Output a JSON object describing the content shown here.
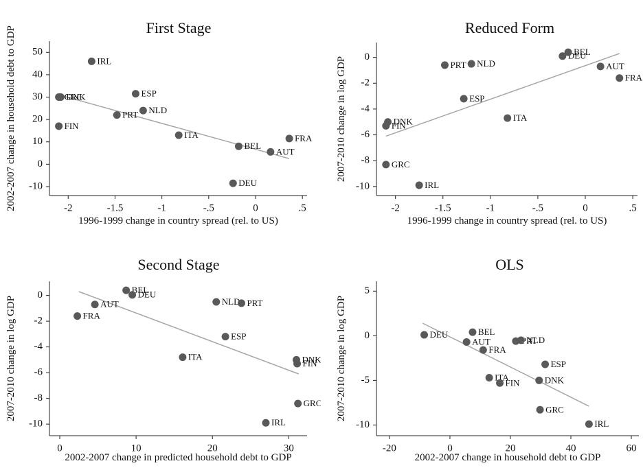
{
  "chart_data": [
    {
      "type": "scatter",
      "title": "First Stage",
      "x_label": "1996-1999 change in country spread (rel. to US)",
      "y_label": "2002-2007 change in household debt to GDP",
      "labels": [
        "IRL",
        "ESP",
        "GRC",
        "DNK",
        "PRT",
        "NLD",
        "FIN",
        "ITA",
        "BEL",
        "AUT",
        "FRA",
        "DEU"
      ],
      "x": [
        -1.75,
        -1.28,
        -2.1,
        -2.08,
        -1.48,
        -1.2,
        -2.1,
        -0.82,
        -0.18,
        0.16,
        0.36,
        -0.24
      ],
      "y": [
        46,
        31.5,
        30,
        30,
        22,
        24,
        17,
        13,
        8,
        5.5,
        11.5,
        -8.5
      ],
      "color": "#595959",
      "fit_line": {
        "x": [
          -2.1,
          0.36
        ],
        "y": [
          31,
          2.5
        ],
        "color": "#a6a6a6"
      },
      "xlim": [
        -2.2,
        0.55
      ],
      "xticks": [
        -2,
        {
          "value": -1.5,
          "label": "-1.5"
        },
        -1,
        {
          "value": -0.5,
          "label": "-.5"
        },
        0,
        {
          "value": 0.5,
          "label": ".5"
        }
      ],
      "ylim": [
        -14,
        55
      ],
      "yticks": [
        -10,
        0,
        10,
        20,
        30,
        40,
        50
      ]
    },
    {
      "type": "scatter",
      "title": "Reduced Form",
      "x_label": "1996-1999 change in country spread (rel. to US)",
      "y_label": "2007-2010 change in log GDP",
      "labels": [
        "BEL",
        "DEU",
        "AUT",
        "FRA",
        "PRT",
        "NLD",
        "ESP",
        "DNK",
        "FIN",
        "ITA",
        "GRC",
        "IRL"
      ],
      "x": [
        -0.18,
        -0.24,
        0.16,
        0.36,
        -1.48,
        -1.2,
        -1.28,
        -2.08,
        -2.1,
        -0.82,
        -2.1,
        -1.75
      ],
      "y": [
        0.4,
        0.1,
        -0.7,
        -1.6,
        -0.6,
        -0.5,
        -3.2,
        -5,
        -5.3,
        -4.7,
        -8.3,
        -9.9
      ],
      "color": "#595959",
      "fit_line": {
        "x": [
          -2.1,
          0.36
        ],
        "y": [
          -6.1,
          0.3
        ],
        "color": "#a6a6a6"
      },
      "xlim": [
        -2.2,
        0.55
      ],
      "xticks": [
        -2,
        {
          "value": -1.5,
          "label": "-1.5"
        },
        -1,
        {
          "value": -0.5,
          "label": "-.5"
        },
        0,
        {
          "value": 0.5,
          "label": ".5"
        }
      ],
      "ylim": [
        -10.7,
        1.15
      ],
      "yticks": [
        -10,
        -8,
        -6,
        -4,
        -2,
        0
      ]
    },
    {
      "type": "scatter",
      "title": "Second Stage",
      "x_label": "2002-2007 change in predicted household debt to GDP",
      "y_label": "2007-2010 change in log GDP",
      "labels": [
        "BEL",
        "DEU",
        "AUT",
        "FRA",
        "NLD",
        "PRT",
        "ESP",
        "ITA",
        "DNK",
        "FIN",
        "GRC",
        "IRL"
      ],
      "x": [
        8.7,
        9.5,
        4.6,
        2.3,
        20.5,
        23.8,
        21.7,
        16.1,
        31,
        31.1,
        31.2,
        27
      ],
      "y": [
        0.4,
        0.05,
        -0.7,
        -1.6,
        -0.5,
        -0.6,
        -3.2,
        -4.8,
        -5,
        -5.3,
        -8.4,
        -9.9
      ],
      "color": "#595959",
      "fit_line": {
        "x": [
          2.5,
          31.3
        ],
        "y": [
          0.3,
          -6.1
        ],
        "color": "#a6a6a6"
      },
      "xlim": [
        -1.35,
        32.4
      ],
      "xticks": [
        0,
        10,
        20,
        30
      ],
      "ylim": [
        -10.9,
        1.1
      ],
      "yticks": [
        -10,
        -8,
        -6,
        -4,
        -2,
        0
      ]
    },
    {
      "type": "scatter",
      "title": "OLS",
      "x_label": "2002-2007 change in household debt to GDP",
      "y_label": "2007-2010 change in log GDP",
      "labels": [
        "DEU",
        "BEL",
        "AUT",
        "FRA",
        "PRT",
        "NLD",
        "ESP",
        "ITA",
        "FIN",
        "DNK",
        "GRC",
        "IRL"
      ],
      "x": [
        -8.5,
        7.5,
        5.5,
        11,
        21.8,
        23.5,
        31.5,
        13,
        16.5,
        29.5,
        29.8,
        46
      ],
      "y": [
        0.1,
        0.4,
        -0.7,
        -1.6,
        -0.6,
        -0.5,
        -3.2,
        -4.7,
        -5.3,
        -5,
        -8.3,
        -9.9
      ],
      "color": "#595959",
      "fit_line": {
        "x": [
          -9,
          46
        ],
        "y": [
          1.4,
          -7.9
        ],
        "color": "#a6a6a6"
      },
      "xlim": [
        -24.3,
        62.5
      ],
      "xticks": [
        -20,
        0,
        20,
        40,
        60
      ],
      "ylim": [
        -11.2,
        6.1
      ],
      "yticks": [
        -10,
        -5,
        0,
        5
      ]
    }
  ]
}
